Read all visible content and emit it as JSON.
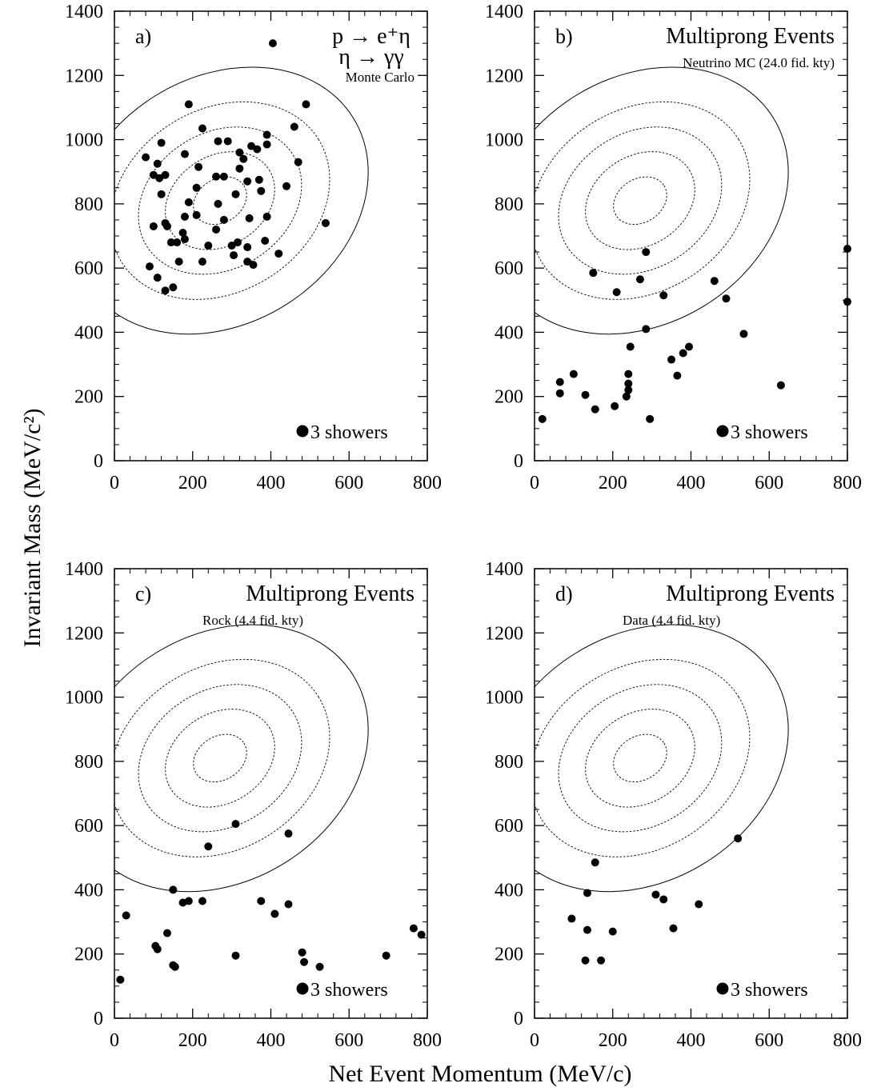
{
  "xlabel": "Net Event Momentum (MeV/c)",
  "ylabel": "Invariant Mass (MeV/c²)",
  "legend_label": "3 showers",
  "chart_data": [
    {
      "type": "scatter",
      "panel": "a)",
      "title_lines": [
        "p → e⁺η",
        "η → γγ"
      ],
      "subtitle": "Monte Carlo",
      "xlim": [
        0,
        800
      ],
      "ylim": [
        0,
        1400
      ],
      "xticks": [
        0,
        200,
        400,
        600,
        800
      ],
      "yticks": [
        0,
        200,
        400,
        600,
        800,
        1000,
        1200,
        1400
      ],
      "legend": "3 showers",
      "points": [
        [
          405,
          1300
        ],
        [
          490,
          1110
        ],
        [
          190,
          1110
        ],
        [
          225,
          1035
        ],
        [
          460,
          1040
        ],
        [
          390,
          1015
        ],
        [
          120,
          990
        ],
        [
          265,
          995
        ],
        [
          290,
          995
        ],
        [
          80,
          945
        ],
        [
          180,
          955
        ],
        [
          320,
          960
        ],
        [
          350,
          980
        ],
        [
          365,
          970
        ],
        [
          470,
          930
        ],
        [
          110,
          925
        ],
        [
          330,
          940
        ],
        [
          390,
          985
        ],
        [
          100,
          890
        ],
        [
          130,
          890
        ],
        [
          215,
          915
        ],
        [
          320,
          910
        ],
        [
          115,
          880
        ],
        [
          340,
          870
        ],
        [
          370,
          875
        ],
        [
          260,
          885
        ],
        [
          280,
          885
        ],
        [
          210,
          850
        ],
        [
          440,
          855
        ],
        [
          120,
          830
        ],
        [
          310,
          830
        ],
        [
          375,
          840
        ],
        [
          190,
          805
        ],
        [
          265,
          800
        ],
        [
          540,
          740
        ],
        [
          180,
          760
        ],
        [
          210,
          765
        ],
        [
          280,
          750
        ],
        [
          345,
          755
        ],
        [
          390,
          760
        ],
        [
          130,
          740
        ],
        [
          135,
          730
        ],
        [
          100,
          730
        ],
        [
          175,
          710
        ],
        [
          160,
          680
        ],
        [
          300,
          670
        ],
        [
          315,
          680
        ],
        [
          340,
          665
        ],
        [
          385,
          685
        ],
        [
          180,
          690
        ],
        [
          145,
          680
        ],
        [
          240,
          670
        ],
        [
          260,
          720
        ],
        [
          305,
          640
        ],
        [
          420,
          645
        ],
        [
          165,
          620
        ],
        [
          225,
          620
        ],
        [
          340,
          620
        ],
        [
          355,
          610
        ],
        [
          90,
          605
        ],
        [
          110,
          570
        ],
        [
          150,
          540
        ],
        [
          130,
          530
        ]
      ]
    },
    {
      "type": "scatter",
      "panel": "b)",
      "title_lines": [
        "Multiprong Events"
      ],
      "subtitle": "Neutrino MC (24.0 fid. kty)",
      "xlim": [
        0,
        800
      ],
      "ylim": [
        0,
        1400
      ],
      "xticks": [
        0,
        200,
        400,
        600,
        800
      ],
      "yticks": [
        0,
        200,
        400,
        600,
        800,
        1000,
        1200,
        1400
      ],
      "legend": "3 showers",
      "points": [
        [
          800,
          660
        ],
        [
          800,
          495
        ],
        [
          285,
          650
        ],
        [
          150,
          585
        ],
        [
          270,
          565
        ],
        [
          460,
          560
        ],
        [
          210,
          525
        ],
        [
          330,
          515
        ],
        [
          490,
          505
        ],
        [
          535,
          395
        ],
        [
          285,
          410
        ],
        [
          245,
          355
        ],
        [
          395,
          355
        ],
        [
          380,
          335
        ],
        [
          350,
          315
        ],
        [
          240,
          270
        ],
        [
          365,
          265
        ],
        [
          100,
          270
        ],
        [
          65,
          245
        ],
        [
          240,
          240
        ],
        [
          240,
          220
        ],
        [
          235,
          200
        ],
        [
          65,
          210
        ],
        [
          130,
          205
        ],
        [
          630,
          235
        ],
        [
          155,
          160
        ],
        [
          205,
          170
        ],
        [
          295,
          130
        ],
        [
          20,
          130
        ]
      ]
    },
    {
      "type": "scatter",
      "panel": "c)",
      "title_lines": [
        "Multiprong Events"
      ],
      "subtitle": "Rock (4.4 fid. kty)",
      "xlim": [
        0,
        800
      ],
      "ylim": [
        0,
        1400
      ],
      "xticks": [
        0,
        200,
        400,
        600,
        800
      ],
      "yticks": [
        0,
        200,
        400,
        600,
        800,
        1000,
        1200,
        1400
      ],
      "legend": "3 showers",
      "points": [
        [
          310,
          605
        ],
        [
          445,
          575
        ],
        [
          240,
          535
        ],
        [
          150,
          400
        ],
        [
          190,
          365
        ],
        [
          175,
          360
        ],
        [
          225,
          365
        ],
        [
          375,
          365
        ],
        [
          445,
          355
        ],
        [
          410,
          325
        ],
        [
          30,
          320
        ],
        [
          135,
          265
        ],
        [
          105,
          225
        ],
        [
          110,
          215
        ],
        [
          150,
          165
        ],
        [
          155,
          160
        ],
        [
          765,
          280
        ],
        [
          785,
          260
        ],
        [
          480,
          205
        ],
        [
          485,
          175
        ],
        [
          525,
          160
        ],
        [
          695,
          195
        ],
        [
          310,
          195
        ],
        [
          15,
          120
        ]
      ]
    },
    {
      "type": "scatter",
      "panel": "d)",
      "title_lines": [
        "Multiprong Events"
      ],
      "subtitle": "Data (4.4 fid. kty)",
      "xlim": [
        0,
        800
      ],
      "ylim": [
        0,
        1400
      ],
      "xticks": [
        0,
        200,
        400,
        600,
        800
      ],
      "yticks": [
        0,
        200,
        400,
        600,
        800,
        1000,
        1200,
        1400
      ],
      "legend": "3 showers",
      "points": [
        [
          520,
          560
        ],
        [
          155,
          485
        ],
        [
          135,
          390
        ],
        [
          310,
          385
        ],
        [
          330,
          370
        ],
        [
          420,
          355
        ],
        [
          95,
          310
        ],
        [
          355,
          280
        ],
        [
          135,
          275
        ],
        [
          200,
          270
        ],
        [
          130,
          180
        ],
        [
          170,
          180
        ]
      ]
    }
  ]
}
